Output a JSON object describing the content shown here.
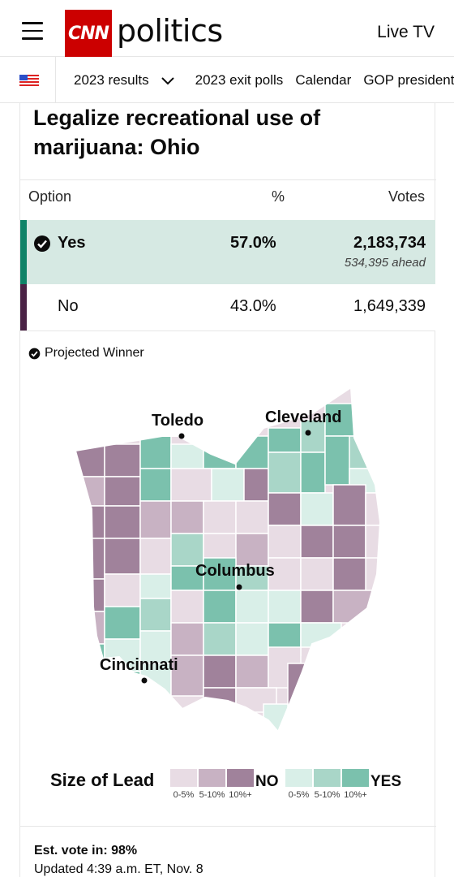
{
  "header": {
    "logo_text": "CNN",
    "section": "politics",
    "live_tv": "Live TV"
  },
  "subnav": {
    "items": [
      "2023 results",
      "2023 exit polls",
      "Calendar",
      "GOP presidential"
    ]
  },
  "race": {
    "title": "Legalize recreational use of marijuana: Ohio",
    "columns": {
      "option": "Option",
      "percent": "%",
      "votes": "Votes"
    },
    "results": [
      {
        "option": "Yes",
        "percent": "57.0%",
        "votes": "2,183,734",
        "ahead": "534,395 ahead",
        "winner": true,
        "color": "#0e8367"
      },
      {
        "option": "No",
        "percent": "43.0%",
        "votes": "1,649,339",
        "winner": false,
        "color": "#4a2245"
      }
    ],
    "projected_winner_label": "Projected Winner"
  },
  "map": {
    "cities": [
      "Toledo",
      "Cleveland",
      "Columbus",
      "Cincinnati"
    ]
  },
  "legend": {
    "title": "Size of Lead",
    "no_label": "NO",
    "yes_label": "YES",
    "ranges": [
      "0-5%",
      "5-10%",
      "10%+"
    ],
    "no_colors": [
      "#e8dce4",
      "#c8b2c3",
      "#a0829b"
    ],
    "yes_colors": [
      "#d9efe8",
      "#a9d6c8",
      "#7bc1ad"
    ]
  },
  "footer": {
    "est_vote": "Est. vote in: 98%",
    "updated": "Updated 4:39 a.m. ET, Nov. 8"
  }
}
